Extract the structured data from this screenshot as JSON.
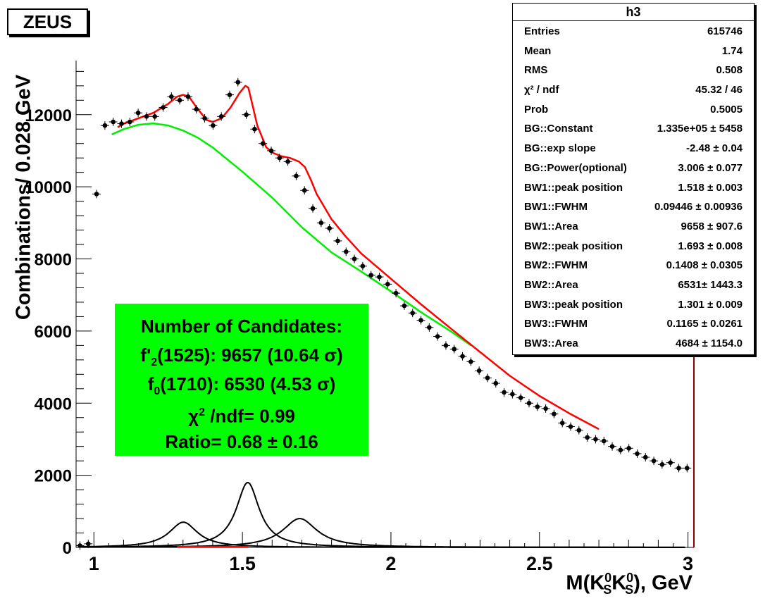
{
  "badge": "ZEUS",
  "stats": {
    "title": "h3",
    "rows": [
      {
        "key": "Entries",
        "value": "615746"
      },
      {
        "key": "Mean",
        "value": "1.74"
      },
      {
        "key": "RMS",
        "value": "0.508"
      },
      {
        "key": "χ² / ndf",
        "value": "45.32 / 46"
      },
      {
        "key": "Prob",
        "value": "0.5005"
      },
      {
        "key": "BG::Constant",
        "value": "1.335e+05 ± 5458"
      },
      {
        "key": "BG::exp slope",
        "value": "-2.48 ± 0.04"
      },
      {
        "key": "BG::Power(optional)",
        "value": "3.006 ± 0.077"
      },
      {
        "key": "BW1::peak position",
        "value": "1.518 ± 0.003"
      },
      {
        "key": "BW1::FWHM",
        "value": "0.09446 ± 0.00936"
      },
      {
        "key": "BW1::Area",
        "value": "9658 ± 907.6"
      },
      {
        "key": "BW2::peak position",
        "value": "1.693 ± 0.008"
      },
      {
        "key": "BW2::FWHM",
        "value": "0.1408 ± 0.0305"
      },
      {
        "key": "BW2::Area",
        "value": "6531± 1443.3"
      },
      {
        "key": "BW3::peak position",
        "value": "1.301 ± 0.009"
      },
      {
        "key": "BW3::FWHM",
        "value": "0.1165 ± 0.0261"
      },
      {
        "key": "BW3::Area",
        "value": "4684 ± 1154.0"
      }
    ]
  },
  "candidates": {
    "line1": "Number of Candidates:",
    "line2_a": "f'",
    "line2_sub": "2",
    "line2_b": "(1525): 9657 (10.64 σ)",
    "line3_a": "f",
    "line3_sub": "0",
    "line3_b": "(1710): 6530 (4.53 σ)",
    "line4_a": "χ",
    "line4_sup": "2",
    "line4_b": " /ndf= 0.99",
    "line5": "Ratio= 0.68 ± 0.16"
  },
  "axes": {
    "ylabel": "Combinations/ 0.028 GeV",
    "xlabel_a": "M(K",
    "xlabel_s1": "S",
    "xlabel_z1": "0",
    "xlabel_b": "K",
    "xlabel_s2": "S",
    "xlabel_z2": "0",
    "xlabel_c": "), GeV"
  },
  "colors": {
    "fit": "#ff0000",
    "background": "#00ee00",
    "points": "#000000",
    "components": "#000000",
    "frame_right": "#8b0000"
  },
  "chart_data": {
    "type": "scatter",
    "xlim": [
      0.94,
      3.02
    ],
    "ylim": [
      0,
      13500
    ],
    "xticks": [
      1,
      1.5,
      2,
      2.5,
      3
    ],
    "xtick_labels": [
      "1",
      "1.5",
      "2",
      "2.5",
      "3"
    ],
    "yticks": [
      0,
      2000,
      4000,
      6000,
      8000,
      10000,
      12000
    ],
    "ytick_labels": [
      "0",
      "2000",
      "4000",
      "6000",
      "8000",
      "10000",
      "12000"
    ],
    "series": [
      {
        "role": "data",
        "x": [
          0.953,
          0.981,
          1.009,
          1.037,
          1.065,
          1.093,
          1.121,
          1.149,
          1.177,
          1.205,
          1.233,
          1.261,
          1.289,
          1.317,
          1.345,
          1.373,
          1.401,
          1.429,
          1.457,
          1.485,
          1.513,
          1.541,
          1.569,
          1.597,
          1.625,
          1.653,
          1.681,
          1.709,
          1.737,
          1.765,
          1.793,
          1.821,
          1.849,
          1.877,
          1.905,
          1.933,
          1.961,
          1.989,
          2.017,
          2.045,
          2.073,
          2.101,
          2.129,
          2.157,
          2.185,
          2.213,
          2.241,
          2.269,
          2.297,
          2.325,
          2.353,
          2.381,
          2.409,
          2.437,
          2.465,
          2.493,
          2.521,
          2.549,
          2.577,
          2.605,
          2.633,
          2.661,
          2.689,
          2.717,
          2.745,
          2.773,
          2.801,
          2.829,
          2.857,
          2.885,
          2.913,
          2.941,
          2.969,
          2.997
        ],
        "y": [
          50,
          100,
          9800,
          11700,
          11800,
          11750,
          11800,
          12050,
          11950,
          11950,
          12200,
          12500,
          12400,
          12500,
          12150,
          11900,
          11700,
          11950,
          12550,
          12900,
          12000,
          11600,
          11200,
          11000,
          10800,
          10700,
          10300,
          9900,
          9400,
          9000,
          8850,
          8500,
          8200,
          8000,
          7800,
          7550,
          7500,
          7300,
          7050,
          6700,
          6500,
          6300,
          6100,
          5850,
          5600,
          5500,
          5300,
          5150,
          4900,
          4700,
          4550,
          4300,
          4250,
          4150,
          4000,
          3900,
          3850,
          3700,
          3450,
          3350,
          3250,
          3050,
          3000,
          2950,
          2800,
          2700,
          2750,
          2600,
          2500,
          2400,
          2300,
          2350,
          2200,
          2200
        ]
      },
      {
        "role": "total_fit",
        "x": [
          1.08,
          1.1,
          1.15,
          1.2,
          1.25,
          1.28,
          1.3,
          1.32,
          1.35,
          1.38,
          1.4,
          1.43,
          1.46,
          1.49,
          1.51,
          1.52,
          1.53,
          1.55,
          1.58,
          1.6,
          1.63,
          1.66,
          1.69,
          1.71,
          1.73,
          1.75,
          1.8,
          1.85,
          1.9,
          2.0,
          2.1,
          2.2,
          2.3,
          2.4,
          2.5,
          2.6,
          2.7
        ],
        "y": [
          11650,
          11750,
          11900,
          12050,
          12300,
          12500,
          12550,
          12500,
          12150,
          11850,
          11800,
          11900,
          12200,
          12600,
          12800,
          12750,
          12400,
          11700,
          11100,
          10950,
          10850,
          10800,
          10700,
          10550,
          10200,
          9800,
          9100,
          8600,
          8150,
          7450,
          6750,
          6080,
          5420,
          4760,
          4200,
          3720,
          3280
        ]
      },
      {
        "role": "background_fit",
        "x": [
          1.06,
          1.1,
          1.15,
          1.2,
          1.25,
          1.3,
          1.35,
          1.4,
          1.5,
          1.6,
          1.7,
          1.8,
          1.9,
          2.0,
          2.1,
          2.2,
          2.27
        ],
        "y": [
          11450,
          11600,
          11720,
          11760,
          11700,
          11560,
          11360,
          11090,
          10420,
          9700,
          8880,
          8180,
          7650,
          7100,
          6530,
          6000,
          5600
        ]
      },
      {
        "role": "bw1",
        "peak": 1.518,
        "fwhm": 0.09446,
        "height": 1800
      },
      {
        "role": "bw2",
        "peak": 1.693,
        "fwhm": 0.1408,
        "height": 800
      },
      {
        "role": "bw3",
        "peak": 1.301,
        "fwhm": 0.1165,
        "height": 700
      }
    ]
  }
}
